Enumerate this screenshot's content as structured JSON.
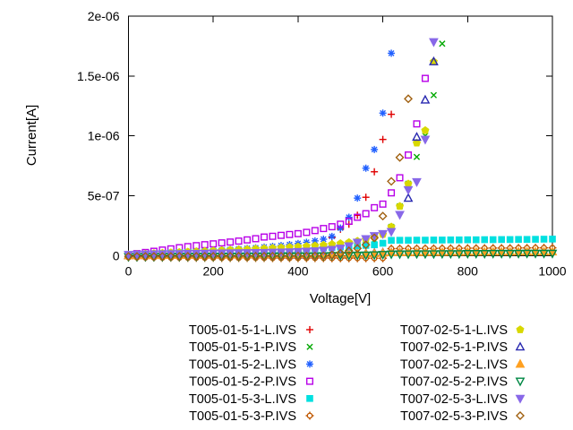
{
  "chart_data": {
    "type": "scatter",
    "title": "",
    "xlabel": "Voltage[V]",
    "ylabel": "Current[A]",
    "xlim": [
      0,
      1000
    ],
    "ylim": [
      0,
      2e-06
    ],
    "x_ticks": [
      0,
      200,
      400,
      600,
      800,
      1000
    ],
    "x_tick_labels": [
      "0",
      "200",
      "400",
      "600",
      "800",
      "1000"
    ],
    "y_ticks": [
      0,
      5e-07,
      1e-06,
      1.5e-06,
      2e-06
    ],
    "y_tick_labels": [
      "0",
      "5e-07",
      "1e-06",
      "1.5e-06",
      "2e-06"
    ],
    "grid": false,
    "legend_position": "below-plot-two-columns",
    "current_unit": "A",
    "series_value_scale": 1e-09,
    "series": [
      {
        "name": "T005-01-5-1-L.IVS",
        "marker": "plus",
        "color": "#e00000",
        "v_start": 0,
        "v_step": 20,
        "i_nA": [
          1,
          2,
          3,
          4,
          5,
          6,
          7,
          8,
          9,
          10,
          11,
          12,
          14,
          15,
          17,
          18,
          20,
          22,
          25,
          28,
          33,
          40,
          52,
          75,
          150,
          220,
          262,
          337,
          487,
          700,
          970,
          1180
        ]
      },
      {
        "name": "T005-01-5-1-P.IVS",
        "marker": "cross",
        "color": "#00a800",
        "v_start": 0,
        "v_step": 20,
        "i_nA": [
          0,
          1,
          2,
          3,
          4,
          5,
          6,
          7,
          8,
          9,
          10,
          11,
          12,
          13,
          14,
          16,
          17,
          19,
          21,
          23,
          26,
          29,
          33,
          38,
          44,
          52,
          62,
          75,
          95,
          130,
          187,
          240,
          412,
          600,
          824,
          1000,
          1340,
          1770
        ]
      },
      {
        "name": "T005-01-5-2-L.IVS",
        "marker": "asterisk",
        "color": "#2060ff",
        "v_start": 0,
        "v_step": 20,
        "i_nA": [
          2,
          6,
          10,
          14,
          18,
          22,
          26,
          30,
          34,
          38,
          42,
          46,
          50,
          55,
          60,
          65,
          71,
          77,
          84,
          92,
          101,
          111,
          123,
          137,
          160,
          230,
          320,
          480,
          730,
          886,
          1190,
          1690
        ]
      },
      {
        "name": "T005-01-5-2-P.IVS",
        "marker": "square-open",
        "color": "#b800e8",
        "v_start": 0,
        "v_step": 20,
        "i_nA": [
          5,
          16,
          26,
          36,
          46,
          56,
          66,
          75,
          83,
          91,
          98,
          106,
          113,
          121,
          131,
          141,
          155,
          161,
          169,
          176,
          183,
          194,
          209,
          226,
          241,
          262,
          287,
          320,
          350,
          400,
          430,
          524,
          650,
          840,
          1100,
          1480
        ]
      },
      {
        "name": "T005-01-5-3-L.IVS",
        "marker": "square-filled",
        "color": "#00e0e0",
        "v_start": 0,
        "v_step": 20,
        "i_nA": [
          2,
          7,
          11,
          15,
          18,
          21,
          24,
          27,
          29,
          32,
          34,
          36,
          39,
          41,
          43,
          46,
          48,
          50,
          53,
          55,
          57,
          60,
          62,
          65,
          68,
          72,
          76,
          80,
          85,
          90,
          103,
          127,
          128,
          128,
          129,
          129,
          130,
          130,
          131,
          131,
          132,
          132,
          133,
          133,
          134,
          134,
          135,
          135,
          136,
          137,
          138
        ]
      },
      {
        "name": "T005-01-5-3-P.IVS",
        "marker": "circle-notch",
        "color": "#c05800",
        "v_start": 0,
        "v_step": 20,
        "i_nA": [
          -15,
          -16,
          -17,
          -17,
          -18,
          -18,
          -18,
          -19,
          -19,
          -19,
          -19,
          -20,
          -20,
          -20,
          -20,
          -20,
          -20,
          -21,
          -21,
          -21,
          -21,
          -21,
          -21,
          -21,
          -22,
          -22,
          -22,
          -22,
          -22,
          -22,
          -22,
          58,
          59,
          59,
          60,
          60,
          60,
          61,
          61,
          61,
          62,
          62,
          62,
          63,
          63,
          63,
          64,
          64,
          65,
          65,
          65
        ]
      },
      {
        "name": "T007-02-5-1-L.IVS",
        "marker": "pentagon-filled",
        "color": "#d8d800",
        "v_start": 0,
        "v_step": 20,
        "i_nA": [
          5,
          10,
          14,
          18,
          21,
          25,
          28,
          31,
          34,
          37,
          40,
          43,
          46,
          49,
          52,
          56,
          59,
          62,
          66,
          70,
          74,
          78,
          83,
          88,
          94,
          101,
          110,
          121,
          135,
          155,
          177,
          240,
          412,
          599,
          940,
          1045,
          1620
        ]
      },
      {
        "name": "T007-02-5-1-P.IVS",
        "marker": "triangle-open",
        "color": "#2828b0",
        "v_start": 0,
        "v_step": 20,
        "i_nA": [
          1,
          2,
          2,
          3,
          3,
          4,
          4,
          5,
          5,
          5,
          6,
          6,
          7,
          7,
          7,
          8,
          8,
          8,
          9,
          9,
          9,
          10,
          10,
          11,
          11,
          12,
          13,
          15,
          18,
          22,
          25,
          25,
          26,
          480,
          990,
          1300,
          1620
        ]
      },
      {
        "name": "T007-02-5-2-L.IVS",
        "marker": "triangle-filled",
        "color": "#ffa020",
        "v_start": 0,
        "v_step": 20,
        "i_nA": [
          0,
          1,
          1,
          2,
          2,
          3,
          3,
          4,
          4,
          5,
          6,
          6,
          7,
          7,
          8,
          8,
          9,
          9,
          10,
          10,
          11,
          11,
          12,
          12,
          13,
          13,
          14,
          15,
          16,
          18,
          22,
          25,
          26,
          26,
          27,
          27,
          28,
          28,
          29,
          29,
          30,
          30,
          30,
          31,
          31,
          31,
          32,
          32,
          32,
          32,
          32
        ]
      },
      {
        "name": "T007-02-5-2-P.IVS",
        "marker": "triangle-down-open",
        "color": "#008844",
        "v_start": 0,
        "v_step": 20,
        "i_nA": [
          -10,
          -10,
          -9,
          -9,
          -9,
          -8,
          -8,
          -8,
          -7,
          -7,
          -7,
          -6,
          -6,
          -6,
          -5,
          -5,
          -5,
          -4,
          -4,
          -4,
          -3,
          -3,
          -2,
          -2,
          -1,
          0,
          1,
          2,
          3,
          5,
          8,
          12,
          13,
          13,
          14,
          14,
          14,
          15,
          15,
          15,
          16,
          16,
          16,
          17,
          17,
          17,
          17,
          18,
          18,
          18,
          18
        ]
      },
      {
        "name": "T007-02-5-3-L.IVS",
        "marker": "triangle-down-filled",
        "color": "#8868e8",
        "v_start": 0,
        "v_step": 20,
        "i_nA": [
          8,
          10,
          11,
          12,
          13,
          14,
          15,
          16,
          17,
          18,
          19,
          20,
          21,
          22,
          23,
          24,
          25,
          27,
          28,
          30,
          32,
          35,
          38,
          43,
          50,
          60,
          80,
          110,
          140,
          165,
          182,
          200,
          342,
          549,
          616,
          970,
          1785
        ]
      },
      {
        "name": "T007-02-5-3-P.IVS",
        "marker": "diamond-open",
        "color": "#a06010",
        "v_start": 0,
        "v_step": 20,
        "i_nA": [
          -7,
          -7,
          -7,
          -7,
          -7,
          -7,
          -6,
          -6,
          -6,
          -6,
          -6,
          -6,
          -6,
          -5,
          -5,
          -5,
          -5,
          -5,
          -5,
          -4,
          -4,
          -4,
          -3,
          -2,
          5,
          20,
          40,
          60,
          90,
          148,
          330,
          620,
          820,
          1310
        ]
      }
    ]
  },
  "colors": {
    "background": "#ffffff",
    "axis": "#000000"
  }
}
